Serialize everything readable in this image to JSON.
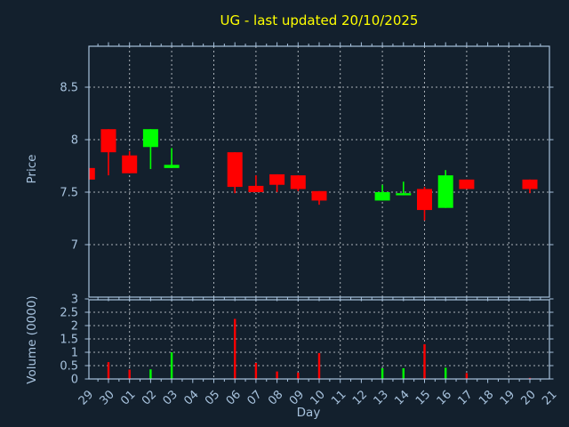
{
  "chart_data": {
    "type": "candlestick",
    "title": "UG - last updated 20/10/2025",
    "xlabel": "Day",
    "price_axis": {
      "label": "Price",
      "ticks": [
        8.5,
        8,
        7.5,
        7
      ],
      "range": [
        6.5,
        8.9
      ],
      "grid": true
    },
    "volume_axis": {
      "label": "Volume (0000)",
      "ticks": [
        3,
        2.5,
        2,
        1.5,
        1,
        0.5,
        0
      ],
      "range": [
        0,
        3
      ],
      "grid": true
    },
    "days": [
      "29",
      "30",
      "01",
      "02",
      "03",
      "04",
      "05",
      "06",
      "07",
      "08",
      "09",
      "10",
      "11",
      "12",
      "13",
      "14",
      "15",
      "16",
      "17",
      "18",
      "19",
      "20",
      "21"
    ],
    "gridline_days": [
      "01",
      "03",
      "05",
      "07",
      "09",
      "11",
      "13",
      "15",
      "17",
      "19"
    ],
    "candles": [
      {
        "day": "29",
        "open": 7.73,
        "high": 7.73,
        "low": 7.62,
        "close": 7.62,
        "volume": null
      },
      {
        "day": "30",
        "open": 8.1,
        "high": 8.1,
        "low": 7.66,
        "close": 7.88,
        "volume": 0.63
      },
      {
        "day": "01",
        "open": 7.85,
        "high": 7.89,
        "low": 7.68,
        "close": 7.68,
        "volume": 0.35
      },
      {
        "day": "02",
        "open": 7.93,
        "high": 8.1,
        "low": 7.72,
        "close": 8.1,
        "volume": 0.36
      },
      {
        "day": "03",
        "open": 7.73,
        "high": 7.92,
        "low": 7.73,
        "close": 7.76,
        "volume": 1.0
      },
      {
        "day": "06",
        "open": 7.88,
        "high": 7.88,
        "low": 7.49,
        "close": 7.55,
        "volume": 2.25
      },
      {
        "day": "07",
        "open": 7.56,
        "high": 7.66,
        "low": 7.5,
        "close": 7.5,
        "volume": 0.6
      },
      {
        "day": "08",
        "open": 7.67,
        "high": 7.67,
        "low": 7.5,
        "close": 7.57,
        "volume": 0.28
      },
      {
        "day": "09",
        "open": 7.66,
        "high": 7.66,
        "low": 7.51,
        "close": 7.53,
        "volume": 0.24
      },
      {
        "day": "10",
        "open": 7.51,
        "high": 7.51,
        "low": 7.38,
        "close": 7.42,
        "volume": 0.97
      },
      {
        "day": "13",
        "open": 7.42,
        "high": 7.57,
        "low": 7.42,
        "close": 7.5,
        "volume": 0.4
      },
      {
        "day": "14",
        "open": 7.47,
        "high": 7.6,
        "low": 7.47,
        "close": 7.49,
        "volume": 0.4
      },
      {
        "day": "15",
        "open": 7.53,
        "high": 7.55,
        "low": 7.23,
        "close": 7.33,
        "volume": 1.3
      },
      {
        "day": "16",
        "open": 7.35,
        "high": 7.71,
        "low": 7.35,
        "close": 7.66,
        "volume": 0.42
      },
      {
        "day": "17",
        "open": 7.62,
        "high": 7.62,
        "low": 7.53,
        "close": 7.53,
        "volume": 0.22
      },
      {
        "day": "20",
        "open": 7.62,
        "high": 7.62,
        "low": 7.49,
        "close": 7.53,
        "volume": 0.04
      }
    ],
    "colors": {
      "up": "#00ff00",
      "down": "#ff0000",
      "background": "#13202d",
      "frame": "#a7c2dd",
      "grid": "#c6cbd1",
      "title": "#ffff00",
      "label": "#a7c2dd"
    },
    "legend": "none"
  }
}
